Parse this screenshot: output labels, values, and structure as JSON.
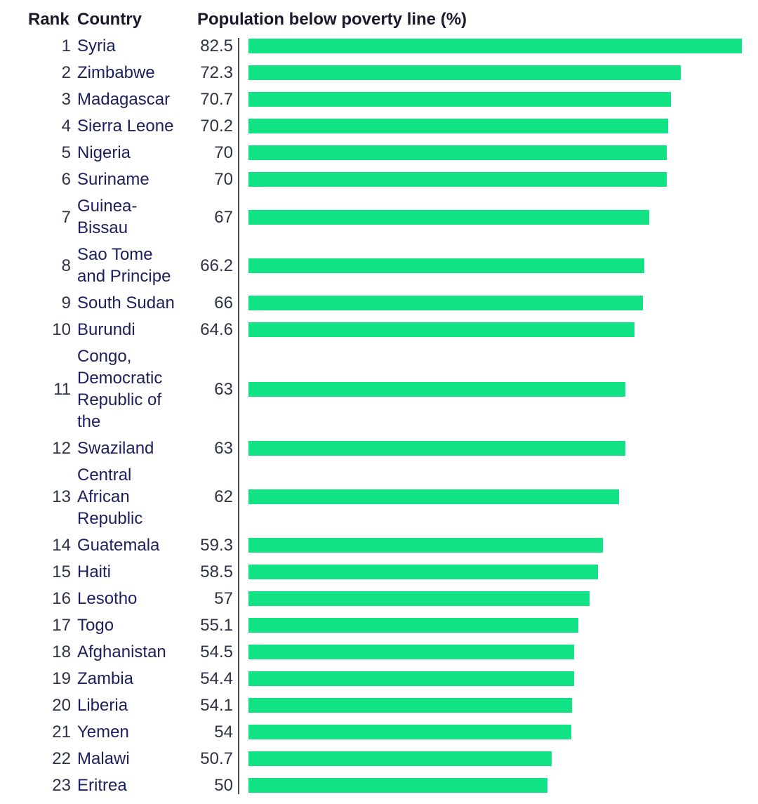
{
  "headers": {
    "rank": "Rank",
    "country": "Country",
    "value": "Population below poverty line (%)"
  },
  "chart_data": {
    "type": "bar",
    "orientation": "horizontal",
    "title": "",
    "xlabel": "Population below poverty line (%)",
    "ylabel": "Country",
    "xlim": [
      0,
      82.5
    ],
    "grid": false,
    "legend": "none",
    "bar_color": "#11e385",
    "rows": [
      {
        "rank": "1",
        "country_lines": [
          "Syria"
        ],
        "value": 82.5,
        "label": "82.5"
      },
      {
        "rank": "2",
        "country_lines": [
          "Zimbabwe"
        ],
        "value": 72.3,
        "label": "72.3"
      },
      {
        "rank": "3",
        "country_lines": [
          "Madagascar"
        ],
        "value": 70.7,
        "label": "70.7"
      },
      {
        "rank": "4",
        "country_lines": [
          "Sierra Leone"
        ],
        "value": 70.2,
        "label": "70.2"
      },
      {
        "rank": "5",
        "country_lines": [
          "Nigeria"
        ],
        "value": 70,
        "label": "70"
      },
      {
        "rank": "6",
        "country_lines": [
          "Suriname"
        ],
        "value": 70,
        "label": "70"
      },
      {
        "rank": "7",
        "country_lines": [
          "Guinea-",
          "Bissau"
        ],
        "value": 67,
        "label": "67"
      },
      {
        "rank": "8",
        "country_lines": [
          "Sao Tome",
          "and Principe"
        ],
        "value": 66.2,
        "label": "66.2"
      },
      {
        "rank": "9",
        "country_lines": [
          "South Sudan"
        ],
        "value": 66,
        "label": "66"
      },
      {
        "rank": "10",
        "country_lines": [
          "Burundi"
        ],
        "value": 64.6,
        "label": "64.6"
      },
      {
        "rank": "11",
        "country_lines": [
          "Congo,",
          "Democratic",
          "Republic of",
          "the"
        ],
        "value": 63,
        "label": "63"
      },
      {
        "rank": "12",
        "country_lines": [
          "Swaziland"
        ],
        "value": 63,
        "label": "63"
      },
      {
        "rank": "13",
        "country_lines": [
          "Central",
          "African",
          "Republic"
        ],
        "value": 62,
        "label": "62"
      },
      {
        "rank": "14",
        "country_lines": [
          "Guatemala"
        ],
        "value": 59.3,
        "label": "59.3"
      },
      {
        "rank": "15",
        "country_lines": [
          "Haiti"
        ],
        "value": 58.5,
        "label": "58.5"
      },
      {
        "rank": "16",
        "country_lines": [
          "Lesotho"
        ],
        "value": 57,
        "label": "57"
      },
      {
        "rank": "17",
        "country_lines": [
          "Togo"
        ],
        "value": 55.1,
        "label": "55.1"
      },
      {
        "rank": "18",
        "country_lines": [
          "Afghanistan"
        ],
        "value": 54.5,
        "label": "54.5"
      },
      {
        "rank": "19",
        "country_lines": [
          "Zambia"
        ],
        "value": 54.4,
        "label": "54.4"
      },
      {
        "rank": "20",
        "country_lines": [
          "Liberia"
        ],
        "value": 54.1,
        "label": "54.1"
      },
      {
        "rank": "21",
        "country_lines": [
          "Yemen"
        ],
        "value": 54,
        "label": "54"
      },
      {
        "rank": "22",
        "country_lines": [
          "Malawi"
        ],
        "value": 50.7,
        "label": "50.7"
      },
      {
        "rank": "23",
        "country_lines": [
          "Eritrea"
        ],
        "value": 50,
        "label": "50"
      }
    ]
  }
}
